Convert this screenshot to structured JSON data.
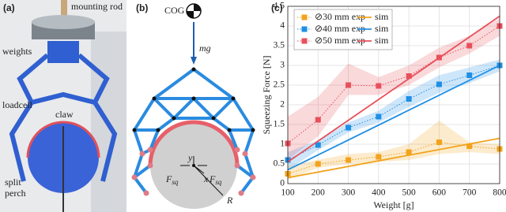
{
  "panel_a": {
    "label": "(a)",
    "mounting_rod": "mounting rod",
    "weights": "weights",
    "loadcell": "loadcell",
    "claw": "claw",
    "split_perch": [
      "split",
      "perch"
    ]
  },
  "panel_b": {
    "label": "(b)",
    "cog": "COG",
    "mg": "mg",
    "force_left": {
      "main": "F",
      "sub": "sq"
    },
    "force_right": {
      "main": "F",
      "sub": "sq"
    },
    "axis_y": "y",
    "axis_x": "x",
    "radius": "R"
  },
  "chart_data": {
    "type": "line",
    "label": "(c)",
    "x_label": "Weight [g]",
    "y_label": "Squeezing Force [N]",
    "xlim": [
      100,
      800
    ],
    "xticks": [
      100,
      200,
      300,
      400,
      500,
      600,
      700,
      800
    ],
    "ylim": [
      0,
      4.5
    ],
    "yticks": [
      0,
      0.5,
      1,
      1.5,
      2,
      2.5,
      3,
      3.5,
      4,
      4.5
    ],
    "grid": true,
    "legend": "upper left",
    "series": [
      {
        "name": "⊘30 mm exp",
        "style": "exp",
        "color": "#f2a31b",
        "x": [
          100,
          200,
          300,
          400,
          500,
          600,
          700,
          800
        ],
        "values": [
          0.25,
          0.5,
          0.6,
          0.68,
          0.8,
          1.05,
          0.95,
          0.88
        ],
        "lower": [
          0.1,
          0.4,
          0.5,
          0.55,
          0.6,
          0.75,
          0.8,
          0.75
        ],
        "upper": [
          0.45,
          0.6,
          0.75,
          0.8,
          1.0,
          1.6,
          1.05,
          1.0
        ]
      },
      {
        "name": "sim",
        "style": "sim",
        "color": "#f2a31b",
        "x": [
          100,
          800
        ],
        "values": [
          0.15,
          1.15
        ]
      },
      {
        "name": "⊘40 mm exp",
        "style": "exp",
        "color": "#1e8fe6",
        "x": [
          100,
          200,
          300,
          400,
          500,
          600,
          700,
          800
        ],
        "values": [
          0.6,
          0.98,
          1.42,
          1.7,
          2.15,
          2.52,
          2.75,
          3.0
        ],
        "lower": [
          0.35,
          0.85,
          1.3,
          1.55,
          1.95,
          2.3,
          2.55,
          2.85
        ],
        "upper": [
          0.8,
          1.1,
          1.55,
          1.85,
          2.35,
          2.75,
          2.95,
          3.15
        ]
      },
      {
        "name": "sim",
        "style": "sim",
        "color": "#1e8fe6",
        "x": [
          100,
          800
        ],
        "values": [
          0.35,
          3.0
        ]
      },
      {
        "name": "⊘50 mm exp",
        "style": "exp",
        "color": "#e8505b",
        "x": [
          100,
          200,
          300,
          400,
          500,
          600,
          700,
          800
        ],
        "values": [
          1.02,
          1.62,
          2.5,
          2.48,
          2.73,
          3.2,
          3.5,
          4.0
        ],
        "lower": [
          0.6,
          1.2,
          2.25,
          2.25,
          2.5,
          2.95,
          3.3,
          3.75
        ],
        "upper": [
          1.7,
          2.2,
          3.05,
          2.7,
          3.0,
          3.45,
          3.75,
          4.2
        ]
      },
      {
        "name": "sim",
        "style": "sim",
        "color": "#e8505b",
        "x": [
          100,
          800
        ],
        "values": [
          0.55,
          4.25
        ]
      }
    ]
  }
}
